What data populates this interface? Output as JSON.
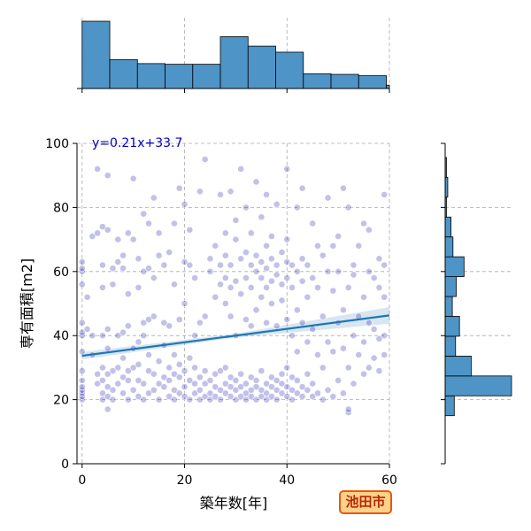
{
  "chart_data": {
    "type": "scatter",
    "subtype": "jointplot-with-regression",
    "xlabel": "築年数[年]",
    "ylabel": "専有面積[m2]",
    "xlim": [
      -1,
      60
    ],
    "ylim": [
      0,
      100
    ],
    "x_ticks": [
      "0",
      "20",
      "40",
      "60"
    ],
    "y_ticks": [
      "0",
      "20",
      "40",
      "60",
      "80",
      "100"
    ],
    "grid": true,
    "regression": {
      "slope": 0.21,
      "intercept": 33.7,
      "label": "y=0.21x+33.7",
      "color": "#1f77b4"
    },
    "point_color": "#2020b0",
    "bar_color": "#4f94c7",
    "x_histogram": {
      "bin_edges": [
        0,
        5.4,
        10.8,
        16.2,
        21.6,
        27,
        32.4,
        37.8,
        43.2,
        48.6,
        54,
        59.4,
        60
      ],
      "counts": [
        100,
        43,
        37,
        36,
        36,
        77,
        63,
        54,
        22,
        21,
        19,
        5
      ]
    },
    "y_histogram": {
      "bin_edges": [
        15,
        21.2,
        27.4,
        33.6,
        39.8,
        46,
        52.2,
        58.4,
        64.6,
        70.8,
        77,
        83.2,
        89.4,
        95.6
      ],
      "counts": [
        14,
        102,
        40,
        16,
        22,
        11,
        17,
        29,
        12,
        9,
        2,
        4,
        2
      ]
    },
    "points": [
      [
        0,
        20
      ],
      [
        0,
        21
      ],
      [
        0,
        22
      ],
      [
        0,
        23
      ],
      [
        0,
        24
      ],
      [
        0,
        26
      ],
      [
        0,
        29
      ],
      [
        0,
        35
      ],
      [
        0,
        40
      ],
      [
        0,
        41
      ],
      [
        0,
        44
      ],
      [
        0,
        56
      ],
      [
        0,
        60
      ],
      [
        0,
        61
      ],
      [
        0,
        63
      ],
      [
        1,
        42
      ],
      [
        1,
        52
      ],
      [
        2,
        34
      ],
      [
        2,
        40
      ],
      [
        2,
        71
      ],
      [
        3,
        25
      ],
      [
        3,
        28
      ],
      [
        3,
        92
      ],
      [
        3,
        72
      ],
      [
        4,
        20
      ],
      [
        4,
        22
      ],
      [
        4,
        26
      ],
      [
        4,
        30
      ],
      [
        4,
        40
      ],
      [
        4,
        55
      ],
      [
        4,
        62
      ],
      [
        4,
        74
      ],
      [
        5,
        17
      ],
      [
        5,
        21
      ],
      [
        5,
        24
      ],
      [
        5,
        28
      ],
      [
        5,
        36
      ],
      [
        5,
        42
      ],
      [
        5,
        73
      ],
      [
        5,
        90
      ],
      [
        6,
        20
      ],
      [
        6,
        23
      ],
      [
        6,
        29
      ],
      [
        6,
        56
      ],
      [
        6,
        61
      ],
      [
        7,
        25
      ],
      [
        7,
        30
      ],
      [
        7,
        40
      ],
      [
        7,
        63
      ],
      [
        7,
        70
      ],
      [
        8,
        22
      ],
      [
        8,
        27
      ],
      [
        8,
        33
      ],
      [
        8,
        41
      ],
      [
        8,
        61
      ],
      [
        8,
        65
      ],
      [
        9,
        20
      ],
      [
        9,
        26
      ],
      [
        9,
        29
      ],
      [
        9,
        43
      ],
      [
        9,
        53
      ],
      [
        9,
        72
      ],
      [
        10,
        23
      ],
      [
        10,
        30
      ],
      [
        10,
        36
      ],
      [
        10,
        70
      ],
      [
        10,
        89
      ],
      [
        11,
        21
      ],
      [
        11,
        26
      ],
      [
        11,
        31
      ],
      [
        11,
        38
      ],
      [
        11,
        55
      ],
      [
        11,
        64
      ],
      [
        12,
        20
      ],
      [
        12,
        25
      ],
      [
        12,
        40
      ],
      [
        12,
        60
      ],
      [
        12,
        78
      ],
      [
        12,
        44
      ],
      [
        13,
        22
      ],
      [
        13,
        29
      ],
      [
        13,
        34
      ],
      [
        13,
        45
      ],
      [
        13,
        61
      ],
      [
        13,
        75
      ],
      [
        14,
        23
      ],
      [
        14,
        28
      ],
      [
        14,
        46
      ],
      [
        14,
        58
      ],
      [
        14,
        83
      ],
      [
        15,
        20
      ],
      [
        15,
        25
      ],
      [
        15,
        32
      ],
      [
        15,
        65
      ],
      [
        15,
        72
      ],
      [
        16,
        24
      ],
      [
        16,
        27
      ],
      [
        16,
        37
      ],
      [
        16,
        44
      ],
      [
        16,
        62
      ],
      [
        17,
        21
      ],
      [
        17,
        26
      ],
      [
        17,
        30
      ],
      [
        17,
        43
      ],
      [
        17,
        66
      ],
      [
        18,
        20
      ],
      [
        18,
        23
      ],
      [
        18,
        28
      ],
      [
        18,
        34
      ],
      [
        18,
        56
      ],
      [
        18,
        75
      ],
      [
        19,
        22
      ],
      [
        19,
        27
      ],
      [
        19,
        31
      ],
      [
        19,
        45
      ],
      [
        19,
        86
      ],
      [
        20,
        21
      ],
      [
        20,
        24
      ],
      [
        20,
        29
      ],
      [
        20,
        50
      ],
      [
        20,
        63
      ],
      [
        20,
        81
      ],
      [
        21,
        20
      ],
      [
        21,
        26
      ],
      [
        21,
        33
      ],
      [
        21,
        62
      ],
      [
        21,
        73
      ],
      [
        22,
        22
      ],
      [
        22,
        25
      ],
      [
        22,
        30
      ],
      [
        22,
        40
      ],
      [
        22,
        58
      ],
      [
        23,
        20
      ],
      [
        23,
        23
      ],
      [
        23,
        27
      ],
      [
        23,
        44
      ],
      [
        23,
        85
      ],
      [
        24,
        21
      ],
      [
        24,
        25
      ],
      [
        24,
        29
      ],
      [
        24,
        46
      ],
      [
        24,
        95
      ],
      [
        25,
        20
      ],
      [
        25,
        22
      ],
      [
        25,
        26
      ],
      [
        25,
        60
      ],
      [
        25,
        64
      ],
      [
        26,
        21
      ],
      [
        26,
        24
      ],
      [
        26,
        28
      ],
      [
        26,
        52
      ],
      [
        26,
        68
      ],
      [
        27,
        20
      ],
      [
        27,
        23
      ],
      [
        27,
        29
      ],
      [
        27,
        56
      ],
      [
        27,
        62
      ],
      [
        27,
        84
      ],
      [
        28,
        22
      ],
      [
        28,
        25
      ],
      [
        28,
        30
      ],
      [
        28,
        50
      ],
      [
        28,
        58
      ],
      [
        28,
        65
      ],
      [
        28,
        72
      ],
      [
        29,
        21
      ],
      [
        29,
        24
      ],
      [
        29,
        27
      ],
      [
        29,
        46
      ],
      [
        29,
        55
      ],
      [
        29,
        62
      ],
      [
        29,
        85
      ],
      [
        30,
        20
      ],
      [
        30,
        23
      ],
      [
        30,
        26
      ],
      [
        30,
        40
      ],
      [
        30,
        57
      ],
      [
        30,
        70
      ],
      [
        30,
        76
      ],
      [
        31,
        21
      ],
      [
        31,
        24
      ],
      [
        31,
        28
      ],
      [
        31,
        53
      ],
      [
        31,
        64
      ],
      [
        31,
        92
      ],
      [
        32,
        20
      ],
      [
        32,
        22
      ],
      [
        32,
        25
      ],
      [
        32,
        45
      ],
      [
        32,
        58
      ],
      [
        32,
        66
      ],
      [
        32,
        80
      ],
      [
        33,
        21
      ],
      [
        33,
        23
      ],
      [
        33,
        27
      ],
      [
        33,
        43
      ],
      [
        33,
        55
      ],
      [
        33,
        62
      ],
      [
        33,
        72
      ],
      [
        34,
        20
      ],
      [
        34,
        24
      ],
      [
        34,
        26
      ],
      [
        34,
        48
      ],
      [
        34,
        60
      ],
      [
        34,
        65
      ],
      [
        34,
        88
      ],
      [
        35,
        21
      ],
      [
        35,
        23
      ],
      [
        35,
        29
      ],
      [
        35,
        52
      ],
      [
        35,
        58
      ],
      [
        35,
        63
      ],
      [
        35,
        77
      ],
      [
        36,
        20
      ],
      [
        36,
        22
      ],
      [
        36,
        25
      ],
      [
        36,
        44
      ],
      [
        36,
        55
      ],
      [
        36,
        61
      ],
      [
        36,
        68
      ],
      [
        36,
        84
      ],
      [
        37,
        21
      ],
      [
        37,
        24
      ],
      [
        37,
        27
      ],
      [
        37,
        50
      ],
      [
        37,
        57
      ],
      [
        37,
        64
      ],
      [
        37,
        71
      ],
      [
        38,
        20
      ],
      [
        38,
        23
      ],
      [
        38,
        26
      ],
      [
        38,
        43
      ],
      [
        38,
        59
      ],
      [
        38,
        62
      ],
      [
        38,
        81
      ],
      [
        39,
        22
      ],
      [
        39,
        25
      ],
      [
        39,
        28
      ],
      [
        39,
        51
      ],
      [
        39,
        56
      ],
      [
        39,
        66
      ],
      [
        40,
        21
      ],
      [
        40,
        24
      ],
      [
        40,
        30
      ],
      [
        40,
        45
      ],
      [
        40,
        58
      ],
      [
        40,
        63
      ],
      [
        40,
        70
      ],
      [
        40,
        92
      ],
      [
        41,
        20
      ],
      [
        41,
        23
      ],
      [
        41,
        27
      ],
      [
        41,
        40
      ],
      [
        41,
        55
      ],
      [
        41,
        62
      ],
      [
        42,
        22
      ],
      [
        42,
        26
      ],
      [
        42,
        35
      ],
      [
        42,
        48
      ],
      [
        42,
        60
      ],
      [
        42,
        80
      ],
      [
        43,
        21
      ],
      [
        43,
        24
      ],
      [
        43,
        44
      ],
      [
        43,
        57
      ],
      [
        43,
        64
      ],
      [
        43,
        86
      ],
      [
        44,
        23
      ],
      [
        44,
        28
      ],
      [
        44,
        38
      ],
      [
        44,
        52
      ],
      [
        44,
        62
      ],
      [
        45,
        21
      ],
      [
        45,
        25
      ],
      [
        45,
        42
      ],
      [
        45,
        58
      ],
      [
        45,
        75
      ],
      [
        46,
        22
      ],
      [
        46,
        34
      ],
      [
        46,
        55
      ],
      [
        46,
        68
      ],
      [
        47,
        20
      ],
      [
        47,
        30
      ],
      [
        47,
        46
      ],
      [
        47,
        65
      ],
      [
        48,
        23
      ],
      [
        48,
        38
      ],
      [
        48,
        60
      ],
      [
        48,
        83
      ],
      [
        49,
        21
      ],
      [
        49,
        35
      ],
      [
        49,
        54
      ],
      [
        49,
        68
      ],
      [
        50,
        26
      ],
      [
        50,
        44
      ],
      [
        50,
        60
      ],
      [
        50,
        71
      ],
      [
        51,
        22
      ],
      [
        51,
        36
      ],
      [
        51,
        48
      ],
      [
        51,
        86
      ],
      [
        52,
        16
      ],
      [
        52,
        17
      ],
      [
        52,
        30
      ],
      [
        52,
        55
      ],
      [
        52,
        80
      ],
      [
        53,
        25
      ],
      [
        53,
        40
      ],
      [
        53,
        59
      ],
      [
        53,
        62
      ],
      [
        54,
        34
      ],
      [
        54,
        46
      ],
      [
        54,
        68
      ],
      [
        55,
        28
      ],
      [
        55,
        38
      ],
      [
        55,
        52
      ],
      [
        55,
        75
      ],
      [
        56,
        30
      ],
      [
        56,
        44
      ],
      [
        56,
        60
      ],
      [
        56,
        73
      ],
      [
        57,
        33
      ],
      [
        57,
        42
      ],
      [
        57,
        58
      ],
      [
        58,
        29
      ],
      [
        58,
        39
      ],
      [
        58,
        55
      ],
      [
        58,
        64
      ],
      [
        59,
        34
      ],
      [
        59,
        40
      ],
      [
        59,
        52
      ],
      [
        59,
        62
      ],
      [
        59,
        84
      ]
    ]
  },
  "badge": {
    "text": "池田市",
    "background": "#ffd28a",
    "border": "#e8590c",
    "text_color": "#b5280a"
  }
}
